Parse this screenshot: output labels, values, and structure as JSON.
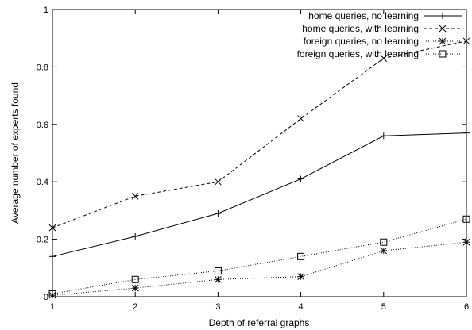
{
  "chart_data": {
    "type": "line",
    "title": "",
    "xlabel": "Depth of referral graphs",
    "ylabel": "Average number of experts found",
    "xlim": [
      1,
      6
    ],
    "ylim": [
      0,
      1
    ],
    "xticks": [
      1,
      2,
      3,
      4,
      5,
      6
    ],
    "yticks": [
      0,
      0.2,
      0.4,
      0.6,
      0.8,
      1
    ],
    "x": [
      1,
      2,
      3,
      4,
      5,
      6
    ],
    "grid": false,
    "legend_position": "top-right",
    "series": [
      {
        "name": "home queries, no learning",
        "values": [
          0.14,
          0.21,
          0.29,
          0.41,
          0.56,
          0.57
        ],
        "line": "solid",
        "marker": "plus"
      },
      {
        "name": "home queries, with learning",
        "values": [
          0.24,
          0.35,
          0.4,
          0.62,
          0.83,
          0.89
        ],
        "line": "dashed",
        "marker": "cross"
      },
      {
        "name": "foreign queries, no learning",
        "values": [
          0.005,
          0.03,
          0.06,
          0.07,
          0.16,
          0.19
        ],
        "line": "dotted",
        "marker": "star"
      },
      {
        "name": "foreign queries, with learning",
        "values": [
          0.01,
          0.06,
          0.09,
          0.14,
          0.19,
          0.27
        ],
        "line": "dotted",
        "marker": "square"
      }
    ],
    "colors": {
      "line": "#000000",
      "background": "#ffffff"
    }
  }
}
